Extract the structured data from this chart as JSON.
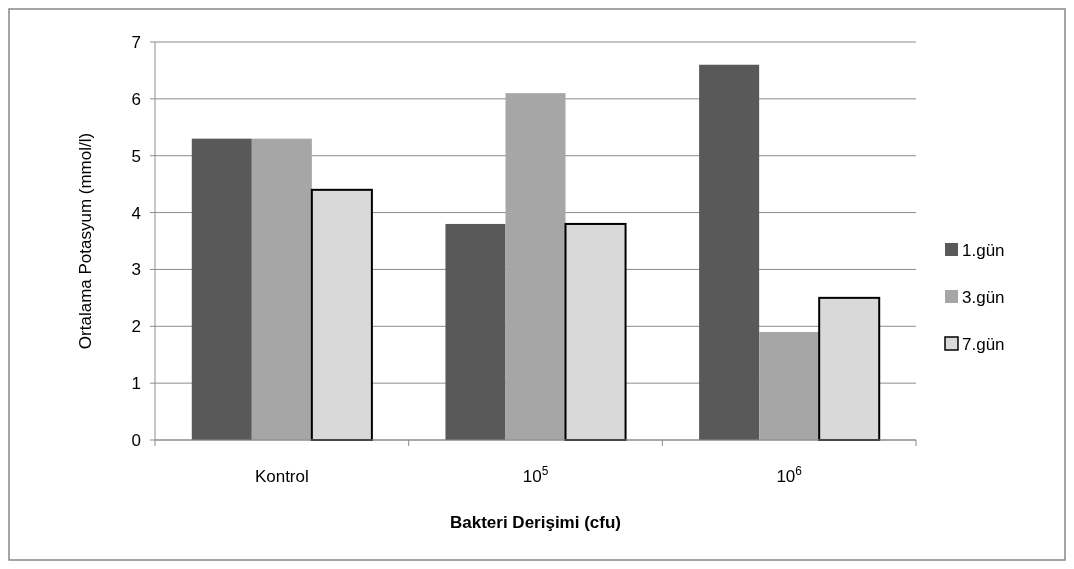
{
  "chart_data": {
    "type": "bar",
    "xlabel": "Bakteri Derişimi (cfu)",
    "ylabel": "Ortalama Potasyum  (mmol/l)",
    "categories": [
      "Kontrol",
      "10$^{5}$",
      "10$^{6}$"
    ],
    "series": [
      {
        "name": "1.gün",
        "color": "#595959",
        "values": [
          5.3,
          3.8,
          6.6
        ]
      },
      {
        "name": "3.gün",
        "color": "#a6a6a6",
        "values": [
          5.3,
          6.1,
          1.9
        ]
      },
      {
        "name": "7.gün",
        "color": "#d9d9d9",
        "values": [
          4.4,
          3.8,
          2.5
        ]
      }
    ],
    "ylim": [
      0,
      7
    ],
    "yticks": [
      0,
      1,
      2,
      3,
      4,
      5,
      6,
      7
    ],
    "grid": "y",
    "legend": "right"
  }
}
